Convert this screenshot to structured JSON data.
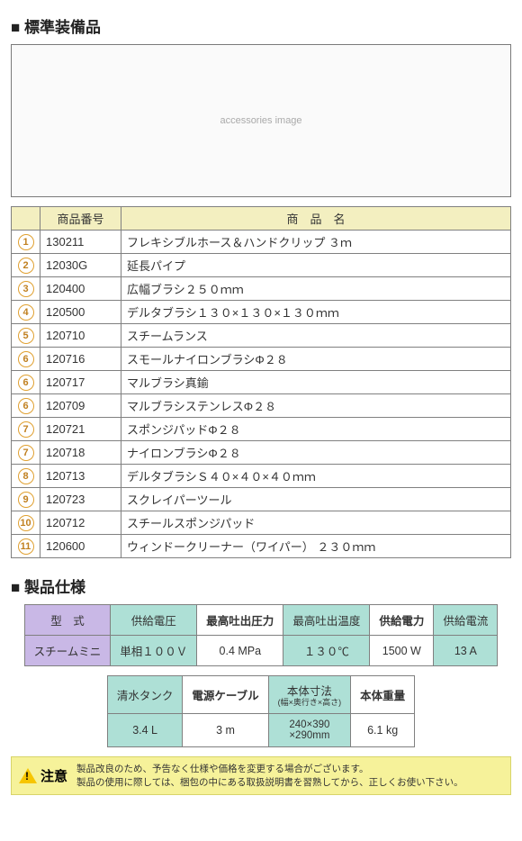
{
  "sections": {
    "parts_title": "■ 標準装備品",
    "spec_title": "■ 製品仕様"
  },
  "parts_table": {
    "headers": {
      "col1": "",
      "col2": "商品番号",
      "col3": "商　品　名"
    },
    "rows": [
      {
        "n": "1",
        "code": "130211",
        "name": "フレキシブルホース＆ハンドクリップ ３ｍ"
      },
      {
        "n": "2",
        "code": "12030G",
        "name": "延長パイプ"
      },
      {
        "n": "3",
        "code": "120400",
        "name": "広幅ブラシ２５０ｍｍ"
      },
      {
        "n": "4",
        "code": "120500",
        "name": "デルタブラシ１３０×１３０×１３０ｍｍ"
      },
      {
        "n": "5",
        "code": "120710",
        "name": "スチームランス"
      },
      {
        "n": "6",
        "code": "120716",
        "name": "スモールナイロンブラシΦ２８"
      },
      {
        "n": "6",
        "code": "120717",
        "name": "マルブラシ真鍮"
      },
      {
        "n": "6",
        "code": "120709",
        "name": "マルブラシステンレスΦ２８"
      },
      {
        "n": "7",
        "code": "120721",
        "name": "スポンジパッドΦ２８"
      },
      {
        "n": "7",
        "code": "120718",
        "name": "ナイロンブラシΦ２８"
      },
      {
        "n": "8",
        "code": "120713",
        "name": "デルタブラシＳ４０×４０×４０ｍｍ"
      },
      {
        "n": "9",
        "code": "120723",
        "name": "スクレイパーツール"
      },
      {
        "n": "10",
        "code": "120712",
        "name": "スチールスポンジパッド"
      },
      {
        "n": "11",
        "code": "120600",
        "name": "ウィンドークリーナー（ワイパー） ２３０ｍｍ"
      }
    ]
  },
  "spec1": {
    "headers": [
      "型　式",
      "供給電圧",
      "最高吐出圧力",
      "最高吐出温度",
      "供給電力",
      "供給電流"
    ],
    "row": [
      "スチームミニ",
      "単相１００Ｖ",
      "0.4 MPa",
      "１３０℃",
      "1500 W",
      "13 A"
    ]
  },
  "spec2": {
    "headers": [
      "清水タンク",
      "電源ケーブル",
      "本体寸法",
      "本体重量"
    ],
    "sub_dim": "(幅×奥行き×高さ)",
    "row": [
      "3.4 L",
      "3 m",
      "240×390\n×290mm",
      "6.1 kg"
    ]
  },
  "caution": {
    "label": "注意",
    "line1": "製品改良のため、予告なく仕様や価格を変更する場合がございます。",
    "line2": "製品の使用に際しては、梱包の中にある取扱説明書を習熟してから、正しくお使い下さい。"
  },
  "colors": {
    "header_yellow": "#f3efc0",
    "lavender": "#c9b8e6",
    "teal": "#aee0d6",
    "caution_bg": "#f6f29a"
  }
}
